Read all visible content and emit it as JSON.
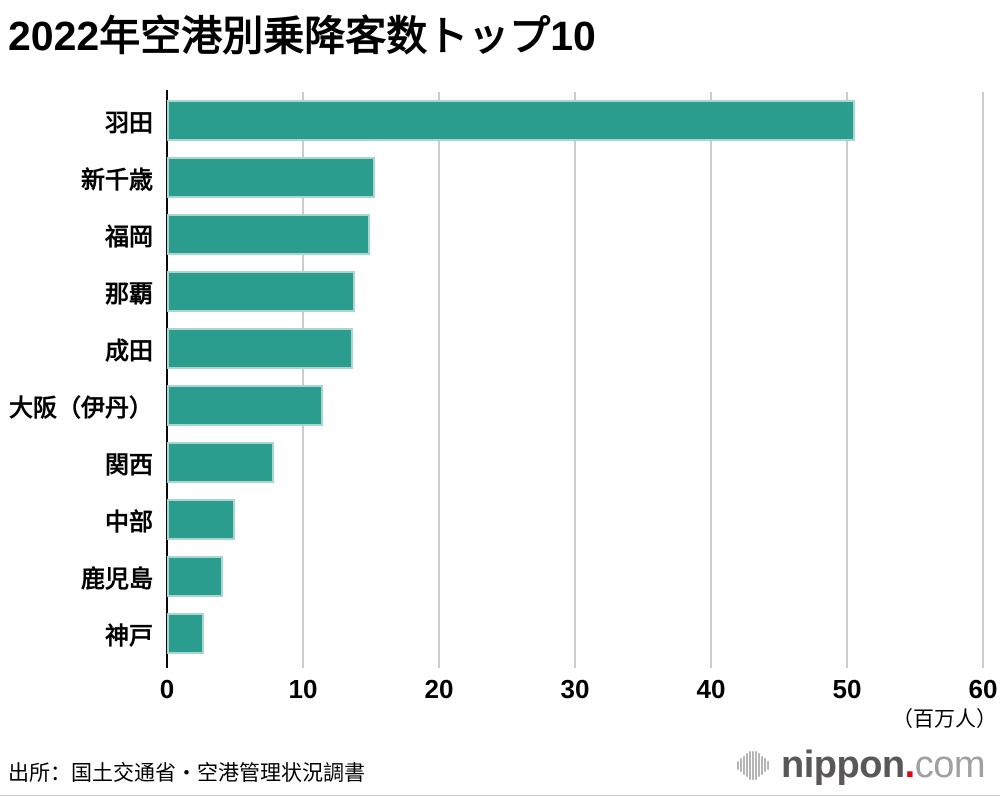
{
  "title": "2022年空港別乗降客数トップ10",
  "chart_data": {
    "type": "bar",
    "orientation": "horizontal",
    "title": "2022年空港別乗降客数トップ10",
    "categories": [
      "羽田",
      "新千歳",
      "福岡",
      "那覇",
      "成田",
      "大阪（伊丹）",
      "関西",
      "中部",
      "鹿児島",
      "神戸"
    ],
    "values": [
      50.6,
      15.3,
      14.9,
      13.8,
      13.7,
      11.5,
      7.9,
      5.0,
      4.1,
      2.7
    ],
    "x_ticks": [
      0,
      10,
      20,
      30,
      40,
      50,
      60
    ],
    "xlim": [
      0,
      60
    ],
    "unit_label": "（百万人）",
    "xlabel": "百万人",
    "ylabel": "",
    "grid": true,
    "legend": "none",
    "bar_color": "#2A9D8F",
    "gridline_color": "#cccccc",
    "axis_color": "#0a0a0a"
  },
  "footer": {
    "source": "出所：国土交通省・空港管理状況調書"
  },
  "logo": {
    "name": "nippon.com",
    "icon": "soundwave-icon",
    "text_bold": "nippon",
    "dot": ".",
    "text_light": "com",
    "color_bold": "#595757",
    "color_dot": "#e60012",
    "color_light": "#9fa0a0"
  }
}
